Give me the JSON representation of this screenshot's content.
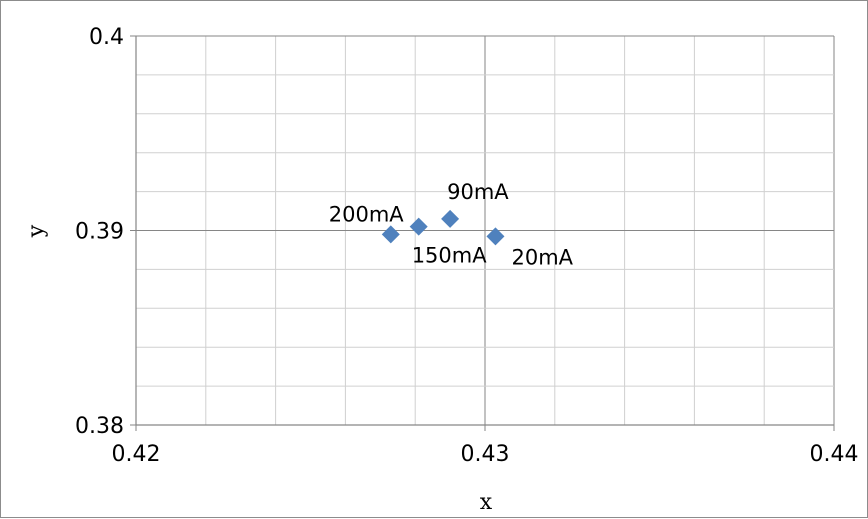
{
  "chart_data": {
    "type": "scatter",
    "title": "",
    "xlabel": "x",
    "ylabel": "y",
    "xlim": [
      0.42,
      0.44
    ],
    "ylim": [
      0.38,
      0.4
    ],
    "x_ticks": [
      "0.42",
      "0.43",
      "0.44"
    ],
    "y_ticks": [
      "0.38",
      "0.39",
      "0.4"
    ],
    "grid": true,
    "legend": "none",
    "marker": "diamond",
    "marker_color": "#4f81bd",
    "series": [
      {
        "points": [
          {
            "x": 0.4273,
            "y": 0.3898,
            "label": "200mA"
          },
          {
            "x": 0.4281,
            "y": 0.3902,
            "label": "150mA"
          },
          {
            "x": 0.429,
            "y": 0.3906,
            "label": "90mA"
          },
          {
            "x": 0.4303,
            "y": 0.3897,
            "label": "20mA"
          }
        ]
      }
    ]
  }
}
